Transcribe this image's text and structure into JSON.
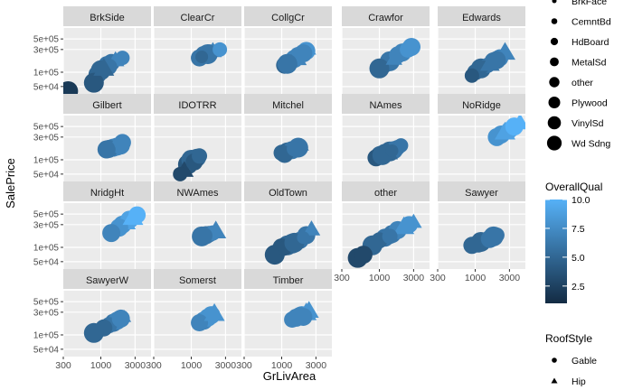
{
  "chart_data": {
    "type": "scatter",
    "facet_by": "Neighborhood",
    "x_label": "GrLivArea",
    "y_label": "SalePrice",
    "x_scale": "log10",
    "y_scale": "log10",
    "x_range": [
      300,
      5000
    ],
    "y_range": [
      35000,
      850000
    ],
    "x_ticks": [
      300,
      1000,
      3000
    ],
    "x_tick_labels": [
      "300",
      "1000",
      "3000"
    ],
    "y_ticks": [
      50000,
      100000,
      300000,
      500000
    ],
    "y_tick_labels": [
      "5e+04",
      "1e+05",
      "3e+05",
      "5e+05"
    ],
    "grid": true,
    "color_legend": {
      "title": "OverallQual",
      "range": [
        1,
        10
      ],
      "ticks": [
        2.5,
        5.0,
        7.5,
        10.0
      ],
      "tick_labels": [
        "2.5",
        "5.0",
        "7.5",
        "10.0"
      ],
      "low_color": "#132B43",
      "high_color": "#56B1F7"
    },
    "size_legend": {
      "title": "",
      "entries": [
        "BrkFace",
        "CemntBd",
        "HdBoard",
        "MetalSd",
        "other",
        "Plywood",
        "VinylSd",
        "Wd Sdng"
      ]
    },
    "shape_legend": {
      "title": "RoofStyle",
      "entries": [
        {
          "label": "Gable",
          "shape": "circle"
        },
        {
          "label": "Hip",
          "shape": "triangle"
        }
      ]
    },
    "facets": [
      {
        "name": "BrkSide",
        "points": [
          [
            1200,
            150000,
            6,
            0,
            3
          ],
          [
            1400,
            160000,
            6,
            0,
            5
          ],
          [
            1000,
            110000,
            5,
            0,
            7
          ],
          [
            900,
            90000,
            5,
            0,
            6
          ],
          [
            800,
            60000,
            4,
            0,
            7
          ],
          [
            1600,
            180000,
            7,
            1,
            3
          ],
          [
            2000,
            200000,
            7,
            0,
            2
          ],
          [
            350,
            40000,
            2,
            0,
            7
          ],
          [
            1300,
            130000,
            6,
            0,
            4
          ],
          [
            1100,
            120000,
            5,
            1,
            6
          ]
        ]
      },
      {
        "name": "ClearCr",
        "points": [
          [
            1500,
            230000,
            6,
            0,
            6
          ],
          [
            1800,
            260000,
            7,
            0,
            4
          ],
          [
            2000,
            280000,
            7,
            1,
            3
          ],
          [
            1300,
            200000,
            6,
            0,
            5
          ],
          [
            1700,
            240000,
            6,
            0,
            7
          ],
          [
            2500,
            300000,
            8,
            0,
            2
          ],
          [
            1400,
            210000,
            5,
            0,
            1
          ]
        ]
      },
      {
        "name": "CollgCr",
        "points": [
          [
            1500,
            190000,
            7,
            0,
            6
          ],
          [
            1700,
            220000,
            7,
            0,
            6
          ],
          [
            1300,
            160000,
            6,
            0,
            4
          ],
          [
            1900,
            240000,
            8,
            0,
            3
          ],
          [
            2200,
            280000,
            8,
            0,
            6
          ],
          [
            1100,
            140000,
            5,
            0,
            5
          ],
          [
            1600,
            200000,
            7,
            1,
            6
          ],
          [
            2400,
            300000,
            8,
            1,
            1
          ],
          [
            1200,
            150000,
            6,
            0,
            7
          ],
          [
            2000,
            250000,
            7,
            0,
            6
          ]
        ]
      },
      {
        "name": "Crawfor",
        "points": [
          [
            1400,
            170000,
            6,
            0,
            7
          ],
          [
            1800,
            230000,
            7,
            0,
            5
          ],
          [
            2100,
            260000,
            7,
            0,
            6
          ],
          [
            1200,
            140000,
            6,
            0,
            3
          ],
          [
            2500,
            300000,
            8,
            0,
            4
          ],
          [
            1000,
            120000,
            5,
            0,
            7
          ],
          [
            1600,
            190000,
            7,
            1,
            2
          ],
          [
            2800,
            340000,
            8,
            0,
            6
          ]
        ]
      },
      {
        "name": "Edwards",
        "points": [
          [
            1200,
            120000,
            5,
            0,
            7
          ],
          [
            1000,
            100000,
            5,
            0,
            4
          ],
          [
            1500,
            140000,
            6,
            0,
            3
          ],
          [
            1800,
            170000,
            6,
            0,
            6
          ],
          [
            2200,
            200000,
            7,
            0,
            5
          ],
          [
            900,
            85000,
            4,
            0,
            2
          ],
          [
            2600,
            260000,
            7,
            1,
            6
          ],
          [
            1300,
            130000,
            5,
            0,
            1
          ],
          [
            1600,
            150000,
            6,
            1,
            5
          ],
          [
            2000,
            180000,
            6,
            0,
            6
          ]
        ]
      },
      {
        "name": "Gilbert",
        "points": [
          [
            1500,
            180000,
            7,
            0,
            6
          ],
          [
            1700,
            190000,
            7,
            0,
            6
          ],
          [
            1300,
            170000,
            6,
            0,
            6
          ],
          [
            1900,
            200000,
            7,
            0,
            6
          ],
          [
            1200,
            165000,
            6,
            0,
            6
          ],
          [
            2000,
            230000,
            7,
            0,
            5
          ]
        ]
      },
      {
        "name": "IDOTRR",
        "points": [
          [
            900,
            80000,
            4,
            0,
            7
          ],
          [
            1000,
            100000,
            5,
            0,
            7
          ],
          [
            1200,
            110000,
            5,
            0,
            6
          ],
          [
            800,
            60000,
            3,
            1,
            4
          ],
          [
            1100,
            90000,
            4,
            0,
            5
          ],
          [
            1300,
            120000,
            5,
            0,
            3
          ],
          [
            700,
            50000,
            3,
            0,
            2
          ]
        ]
      },
      {
        "name": "Mitchel",
        "points": [
          [
            1200,
            150000,
            5,
            0,
            6
          ],
          [
            1400,
            160000,
            6,
            0,
            6
          ],
          [
            1000,
            140000,
            5,
            0,
            4
          ],
          [
            1700,
            180000,
            6,
            0,
            7
          ],
          [
            1900,
            200000,
            6,
            1,
            1
          ],
          [
            1100,
            130000,
            5,
            0,
            5
          ],
          [
            1500,
            170000,
            6,
            0,
            3
          ]
        ]
      },
      {
        "name": "NAmes",
        "points": [
          [
            1200,
            140000,
            5,
            0,
            6
          ],
          [
            1000,
            130000,
            5,
            0,
            4
          ],
          [
            1400,
            150000,
            5,
            0,
            7
          ],
          [
            1600,
            160000,
            6,
            0,
            6
          ],
          [
            1800,
            180000,
            6,
            0,
            3
          ],
          [
            900,
            110000,
            4,
            0,
            5
          ],
          [
            1300,
            145000,
            5,
            1,
            6
          ],
          [
            2000,
            200000,
            6,
            0,
            2
          ],
          [
            1100,
            125000,
            5,
            0,
            7
          ],
          [
            1500,
            155000,
            5,
            0,
            1
          ]
        ]
      },
      {
        "name": "NoRidge",
        "points": [
          [
            2000,
            300000,
            8,
            0,
            6
          ],
          [
            2300,
            340000,
            8,
            0,
            6
          ],
          [
            2600,
            380000,
            9,
            1,
            6
          ],
          [
            3000,
            420000,
            9,
            0,
            5
          ],
          [
            3500,
            500000,
            10,
            0,
            6
          ],
          [
            4200,
            600000,
            10,
            1,
            4
          ]
        ]
      },
      {
        "name": "NridgHt",
        "points": [
          [
            2000,
            300000,
            8,
            0,
            6
          ],
          [
            2200,
            340000,
            9,
            1,
            6
          ],
          [
            2500,
            380000,
            9,
            0,
            6
          ],
          [
            1800,
            260000,
            8,
            0,
            6
          ],
          [
            2800,
            420000,
            10,
            1,
            6
          ],
          [
            3200,
            480000,
            10,
            0,
            5
          ],
          [
            1400,
            200000,
            7,
            0,
            6
          ]
        ]
      },
      {
        "name": "NWAmes",
        "points": [
          [
            1600,
            180000,
            6,
            0,
            6
          ],
          [
            1800,
            190000,
            6,
            0,
            4
          ],
          [
            1400,
            170000,
            6,
            0,
            7
          ],
          [
            2000,
            200000,
            7,
            0,
            3
          ],
          [
            2200,
            220000,
            7,
            1,
            6
          ],
          [
            1500,
            175000,
            6,
            0,
            5
          ]
        ]
      },
      {
        "name": "OldTown",
        "points": [
          [
            1200,
            110000,
            5,
            0,
            7
          ],
          [
            1400,
            120000,
            5,
            0,
            7
          ],
          [
            1000,
            100000,
            4,
            0,
            6
          ],
          [
            1600,
            130000,
            6,
            0,
            4
          ],
          [
            1800,
            140000,
            6,
            0,
            5
          ],
          [
            800,
            70000,
            4,
            0,
            7
          ],
          [
            2200,
            180000,
            6,
            0,
            6
          ],
          [
            2600,
            240000,
            7,
            1,
            3
          ],
          [
            1100,
            95000,
            4,
            0,
            2
          ],
          [
            1500,
            125000,
            5,
            0,
            7
          ],
          [
            2000,
            160000,
            6,
            0,
            1
          ]
        ]
      },
      {
        "name": "other",
        "points": [
          [
            1200,
            160000,
            6,
            0,
            6
          ],
          [
            1500,
            190000,
            6,
            0,
            6
          ],
          [
            1800,
            230000,
            7,
            0,
            6
          ],
          [
            1000,
            140000,
            5,
            0,
            4
          ],
          [
            2200,
            270000,
            8,
            1,
            6
          ],
          [
            2600,
            300000,
            8,
            0,
            5
          ],
          [
            800,
            110000,
            5,
            0,
            7
          ],
          [
            500,
            60000,
            3,
            0,
            7
          ],
          [
            600,
            70000,
            3,
            0,
            6
          ],
          [
            1400,
            170000,
            6,
            0,
            3
          ],
          [
            3000,
            340000,
            8,
            1,
            2
          ]
        ]
      },
      {
        "name": "Sawyer",
        "points": [
          [
            1200,
            130000,
            5,
            0,
            7
          ],
          [
            1100,
            120000,
            5,
            0,
            6
          ],
          [
            1400,
            140000,
            5,
            0,
            4
          ],
          [
            1600,
            150000,
            6,
            0,
            6
          ],
          [
            900,
            110000,
            5,
            0,
            5
          ],
          [
            1800,
            170000,
            6,
            0,
            7
          ],
          [
            2000,
            180000,
            6,
            0,
            3
          ]
        ]
      },
      {
        "name": "SawyerW",
        "points": [
          [
            1500,
            180000,
            6,
            0,
            6
          ],
          [
            1700,
            200000,
            7,
            0,
            6
          ],
          [
            1300,
            160000,
            6,
            0,
            4
          ],
          [
            1900,
            220000,
            7,
            0,
            6
          ],
          [
            1100,
            140000,
            5,
            0,
            5
          ],
          [
            800,
            110000,
            5,
            0,
            7
          ],
          [
            2100,
            240000,
            7,
            1,
            1
          ]
        ]
      },
      {
        "name": "Somerst",
        "points": [
          [
            1500,
            200000,
            7,
            0,
            6
          ],
          [
            1700,
            230000,
            8,
            0,
            6
          ],
          [
            1900,
            260000,
            8,
            0,
            6
          ],
          [
            1300,
            180000,
            7,
            0,
            5
          ],
          [
            2100,
            280000,
            8,
            1,
            6
          ]
        ]
      },
      {
        "name": "Timber",
        "points": [
          [
            1600,
            230000,
            7,
            0,
            6
          ],
          [
            1900,
            260000,
            8,
            0,
            6
          ],
          [
            2200,
            290000,
            8,
            1,
            6
          ],
          [
            1400,
            210000,
            7,
            0,
            4
          ],
          [
            2400,
            320000,
            8,
            1,
            5
          ],
          [
            1800,
            250000,
            7,
            0,
            6
          ],
          [
            2000,
            240000,
            7,
            0,
            6
          ]
        ]
      }
    ]
  }
}
